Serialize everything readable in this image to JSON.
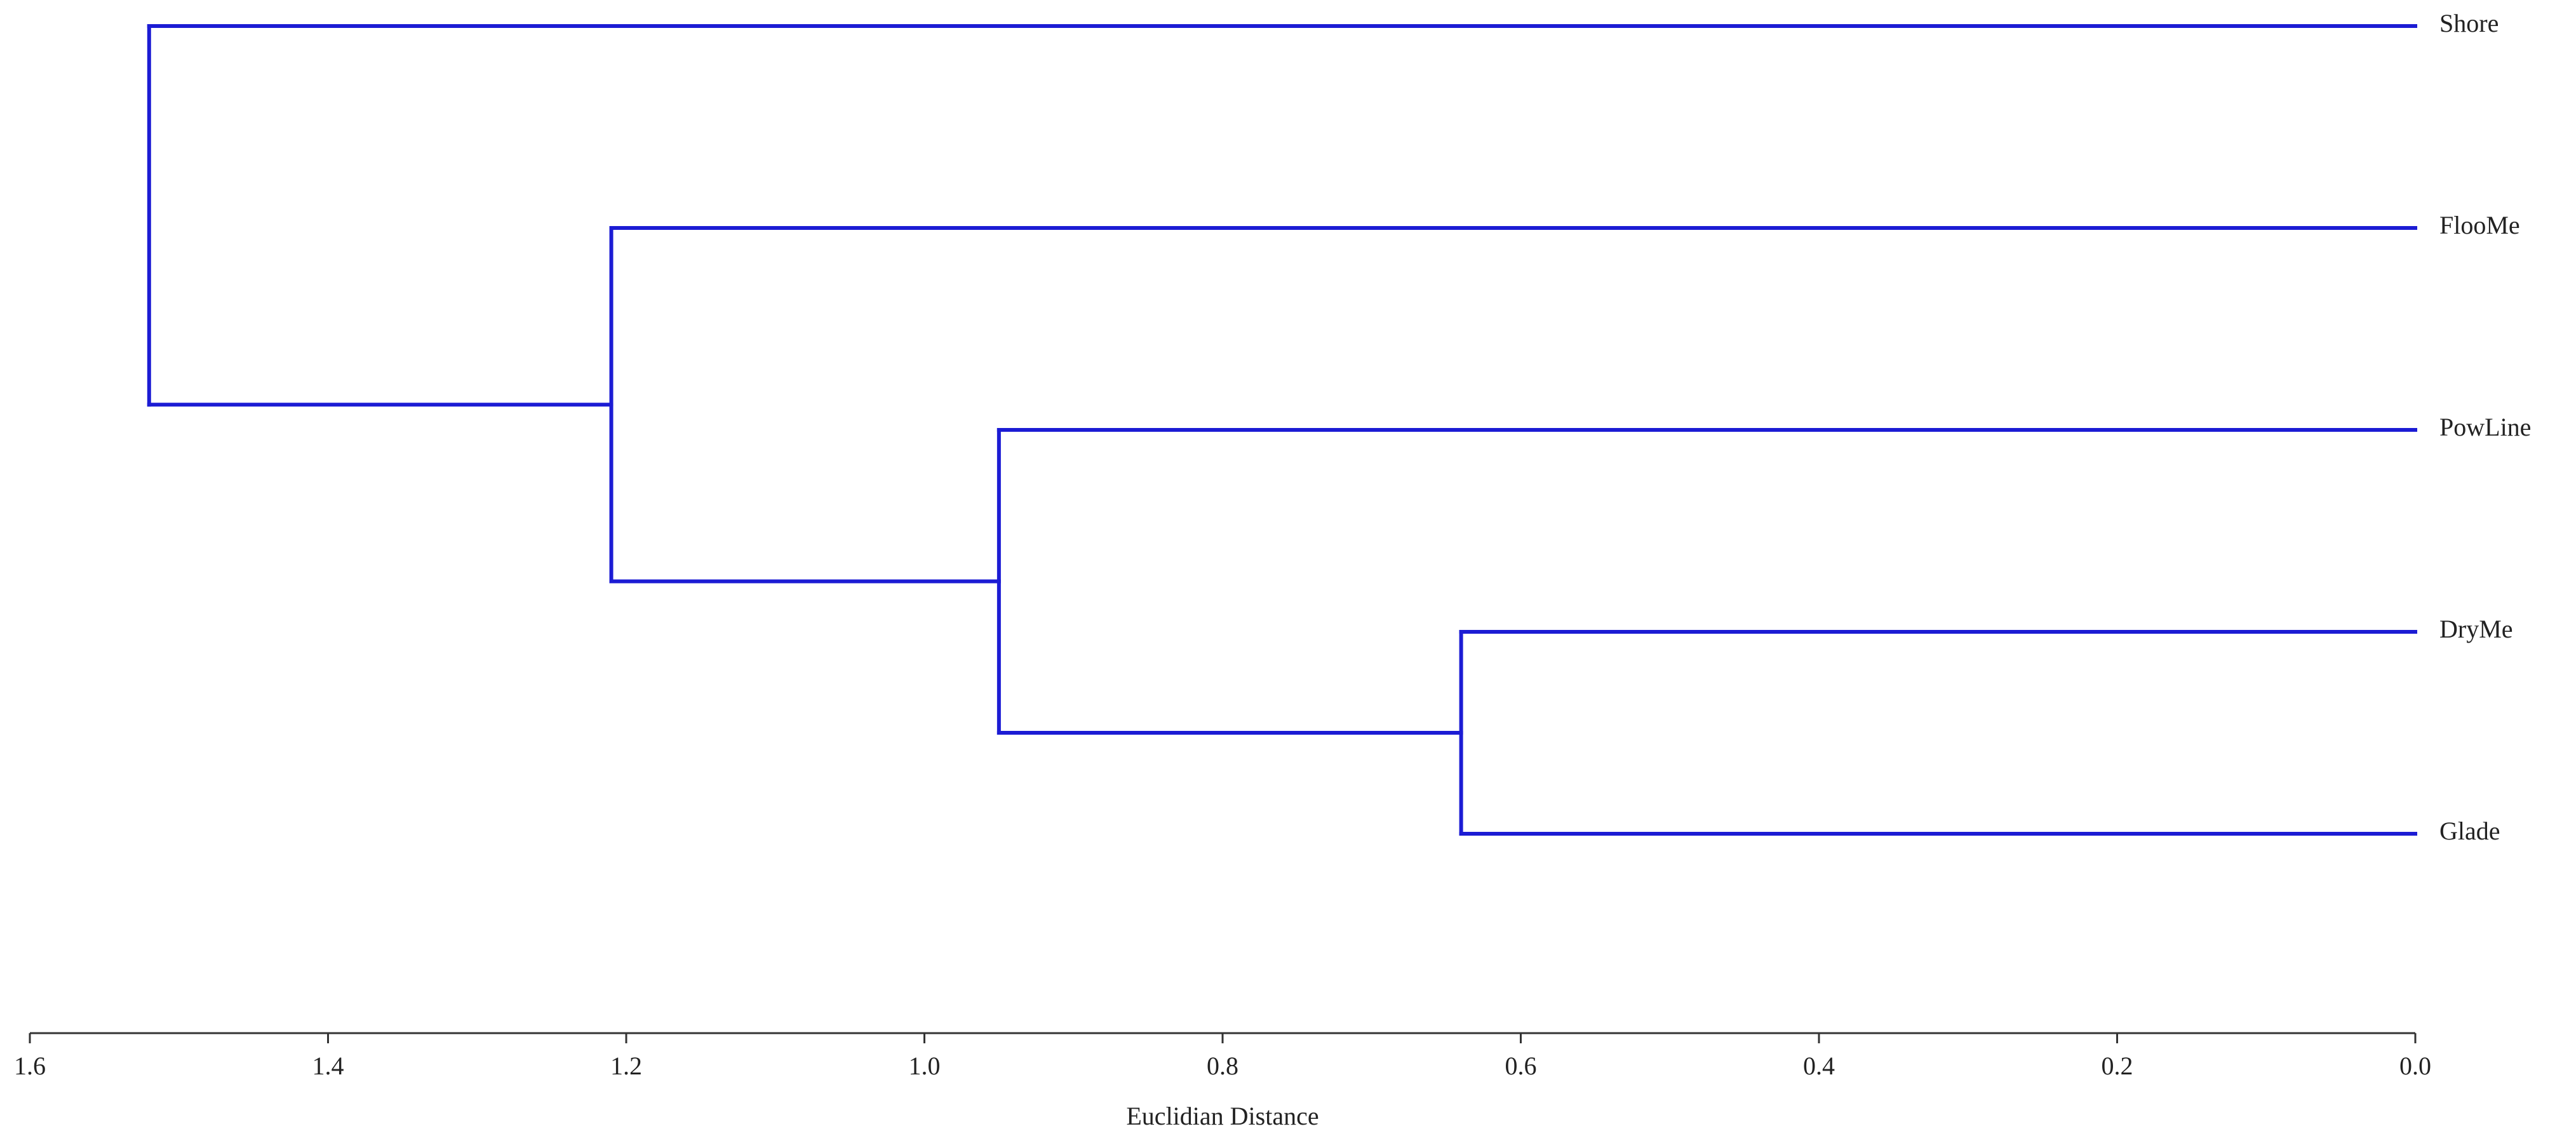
{
  "chart_data": {
    "type": "dendrogram",
    "orientation": "left",
    "color": "#1c1cd4",
    "x_label": "Euclidian Distance",
    "xlim": [
      1.6,
      0
    ],
    "xticks": [
      1.6,
      1.4,
      1.2,
      {
        "value": 1.0,
        "label": "1.0"
      },
      0.8,
      0.6,
      0.4,
      0.2,
      {
        "value": 0,
        "label": "0.0"
      }
    ],
    "tree": {
      "height": 1.52,
      "children": [
        {
          "name": "Shore"
        },
        {
          "height": 1.21,
          "children": [
            {
              "name": "FlooMe"
            },
            {
              "height": 0.95,
              "children": [
                {
                  "name": "PowLine"
                },
                {
                  "height": 0.64,
                  "children": [
                    {
                      "name": "DryMe"
                    },
                    {
                      "name": "Glade"
                    }
                  ]
                }
              ]
            }
          ]
        }
      ]
    }
  }
}
